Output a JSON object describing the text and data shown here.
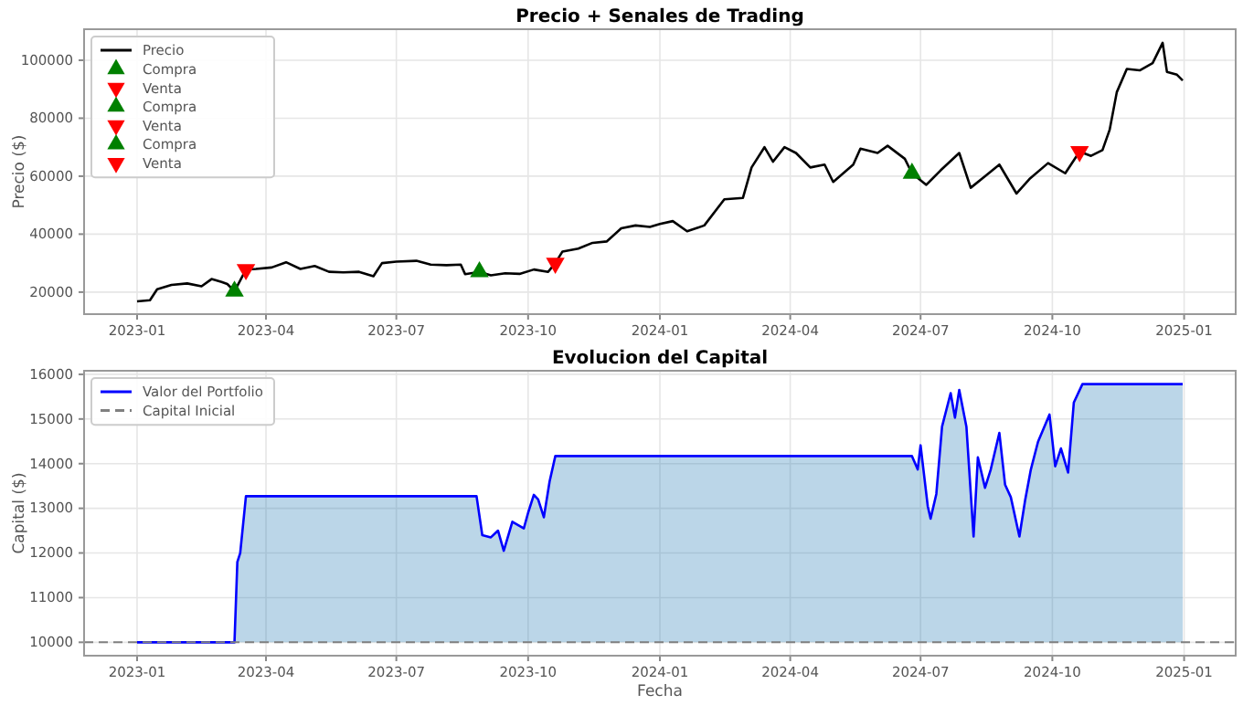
{
  "chart_data": [
    {
      "type": "line",
      "title": "Precio + Senales de Trading",
      "ylabel": "Precio ($)",
      "xlim": [
        "2022-11-25",
        "2025-02-06"
      ],
      "ylim": [
        12400,
        110700
      ],
      "xticks": [
        {
          "value": "2023-01-01",
          "label": "2023-01"
        },
        {
          "value": "2023-04-01",
          "label": "2023-04"
        },
        {
          "value": "2023-07-01",
          "label": "2023-07"
        },
        {
          "value": "2023-10-01",
          "label": "2023-10"
        },
        {
          "value": "2024-01-01",
          "label": "2024-01"
        },
        {
          "value": "2024-04-01",
          "label": "2024-04"
        },
        {
          "value": "2024-07-01",
          "label": "2024-07"
        },
        {
          "value": "2024-10-01",
          "label": "2024-10"
        },
        {
          "value": "2025-01-01",
          "label": "2025-01"
        }
      ],
      "yticks": [
        20000,
        40000,
        60000,
        80000,
        100000
      ],
      "grid": true,
      "legend": "top left",
      "series": [
        {
          "name": "Precio",
          "color": "#000000",
          "x": [
            "2023-01-01",
            "2023-01-10",
            "2023-01-15",
            "2023-01-25",
            "2023-02-05",
            "2023-02-15",
            "2023-02-22",
            "2023-03-01",
            "2023-03-05",
            "2023-03-10",
            "2023-03-14",
            "2023-03-18",
            "2023-03-25",
            "2023-04-05",
            "2023-04-15",
            "2023-04-25",
            "2023-05-05",
            "2023-05-15",
            "2023-05-25",
            "2023-06-05",
            "2023-06-15",
            "2023-06-21",
            "2023-07-01",
            "2023-07-15",
            "2023-07-25",
            "2023-08-05",
            "2023-08-15",
            "2023-08-18",
            "2023-08-28",
            "2023-09-05",
            "2023-09-15",
            "2023-09-25",
            "2023-10-05",
            "2023-10-15",
            "2023-10-20",
            "2023-10-25",
            "2023-11-05",
            "2023-11-15",
            "2023-11-25",
            "2023-12-05",
            "2023-12-15",
            "2023-12-25",
            "2024-01-01",
            "2024-01-10",
            "2024-01-20",
            "2024-02-01",
            "2024-02-15",
            "2024-02-28",
            "2024-03-05",
            "2024-03-14",
            "2024-03-20",
            "2024-03-28",
            "2024-04-05",
            "2024-04-15",
            "2024-04-25",
            "2024-05-01",
            "2024-05-15",
            "2024-05-20",
            "2024-06-01",
            "2024-06-08",
            "2024-06-20",
            "2024-06-25",
            "2024-07-05",
            "2024-07-15",
            "2024-07-28",
            "2024-08-05",
            "2024-08-15",
            "2024-08-25",
            "2024-09-06",
            "2024-09-15",
            "2024-09-28",
            "2024-10-10",
            "2024-10-20",
            "2024-10-28",
            "2024-11-05",
            "2024-11-10",
            "2024-11-15",
            "2024-11-22",
            "2024-12-01",
            "2024-12-10",
            "2024-12-17",
            "2024-12-20",
            "2024-12-27",
            "2024-12-31"
          ],
          "values": [
            16800,
            17200,
            21000,
            22500,
            23000,
            22000,
            24500,
            23500,
            22800,
            20300,
            24000,
            27800,
            28000,
            28500,
            30300,
            28000,
            29000,
            27000,
            26800,
            27000,
            25500,
            30000,
            30500,
            30800,
            29500,
            29300,
            29500,
            26200,
            27000,
            25800,
            26500,
            26300,
            27800,
            27000,
            30000,
            34000,
            35000,
            37000,
            37500,
            42000,
            43000,
            42500,
            43500,
            44500,
            41000,
            43000,
            52000,
            52500,
            63000,
            70000,
            65000,
            70000,
            68000,
            63000,
            64000,
            58000,
            64000,
            69500,
            68000,
            70500,
            66000,
            61000,
            57000,
            62000,
            68000,
            56000,
            60000,
            64000,
            54000,
            59000,
            64500,
            61000,
            68500,
            67000,
            69000,
            76000,
            89000,
            97000,
            96500,
            99000,
            106000,
            96000,
            95000,
            93000
          ]
        },
        {
          "name": "Compra",
          "type": "scatter",
          "color": "#008000",
          "marker": "triangle",
          "x": [
            "2023-03-10"
          ],
          "values": [
            20300
          ]
        },
        {
          "name": "Venta",
          "type": "scatter",
          "color": "#ff0000",
          "marker": "triangle-down",
          "x": [
            "2023-03-18"
          ],
          "values": [
            27800
          ]
        },
        {
          "name": "Compra",
          "type": "scatter",
          "color": "#008000",
          "marker": "triangle",
          "x": [
            "2023-08-28"
          ],
          "values": [
            27000
          ]
        },
        {
          "name": "Venta",
          "type": "scatter",
          "color": "#ff0000",
          "marker": "triangle-down",
          "x": [
            "2023-10-20"
          ],
          "values": [
            30000
          ]
        },
        {
          "name": "Compra",
          "type": "scatter",
          "color": "#008000",
          "marker": "triangle",
          "x": [
            "2024-06-25"
          ],
          "values": [
            61000
          ]
        },
        {
          "name": "Venta",
          "type": "scatter",
          "color": "#ff0000",
          "marker": "triangle-down",
          "x": [
            "2024-10-20"
          ],
          "values": [
            68500
          ]
        }
      ]
    },
    {
      "type": "area",
      "title": "Evolucion del Capital",
      "xlabel": "Fecha",
      "ylabel": "Capital ($)",
      "xlim": [
        "2022-11-25",
        "2025-02-06"
      ],
      "ylim": [
        9700,
        16080
      ],
      "xticks": [
        {
          "value": "2023-01-01",
          "label": "2023-01"
        },
        {
          "value": "2023-04-01",
          "label": "2023-04"
        },
        {
          "value": "2023-07-01",
          "label": "2023-07"
        },
        {
          "value": "2023-10-01",
          "label": "2023-10"
        },
        {
          "value": "2024-01-01",
          "label": "2024-01"
        },
        {
          "value": "2024-04-01",
          "label": "2024-04"
        },
        {
          "value": "2024-07-01",
          "label": "2024-07"
        },
        {
          "value": "2024-10-01",
          "label": "2024-10"
        },
        {
          "value": "2025-01-01",
          "label": "2025-01"
        }
      ],
      "yticks": [
        10000,
        11000,
        12000,
        13000,
        14000,
        15000,
        16000
      ],
      "grid": true,
      "legend": "top left",
      "ref_lines": [
        {
          "axis": "y",
          "value": 10000,
          "label": "Capital Inicial",
          "color": "#808080",
          "line_style": "dashed"
        }
      ],
      "series": [
        {
          "name": "Valor del Portfolio",
          "color": "#0000ff",
          "x": [
            "2023-01-01",
            "2023-03-10",
            "2023-03-12",
            "2023-03-14",
            "2023-03-18",
            "2023-08-26",
            "2023-08-30",
            "2023-09-05",
            "2023-09-10",
            "2023-09-14",
            "2023-09-20",
            "2023-09-28",
            "2023-10-01",
            "2023-10-05",
            "2023-10-08",
            "2023-10-12",
            "2023-10-16",
            "2023-10-20",
            "2024-06-25",
            "2024-06-29",
            "2024-07-01",
            "2024-07-06",
            "2024-07-08",
            "2024-07-12",
            "2024-07-16",
            "2024-07-22",
            "2024-07-25",
            "2024-07-28",
            "2024-08-02",
            "2024-08-07",
            "2024-08-10",
            "2024-08-15",
            "2024-08-19",
            "2024-08-25",
            "2024-08-29",
            "2024-09-02",
            "2024-09-08",
            "2024-09-12",
            "2024-09-16",
            "2024-09-21",
            "2024-09-29",
            "2024-10-03",
            "2024-10-07",
            "2024-10-12",
            "2024-10-16",
            "2024-10-22",
            "2024-12-31"
          ],
          "values": [
            10000,
            10000,
            11800,
            12000,
            13270,
            13270,
            12400,
            12350,
            12500,
            12050,
            12700,
            12550,
            12900,
            13300,
            13200,
            12800,
            13600,
            14170,
            14170,
            13870,
            14410,
            13050,
            12770,
            13320,
            14830,
            15580,
            15030,
            15650,
            14830,
            12370,
            14140,
            13460,
            13870,
            14690,
            13530,
            13250,
            12370,
            13180,
            13870,
            14490,
            15100,
            13940,
            14340,
            13800,
            15370,
            15780,
            15780
          ]
        }
      ]
    }
  ]
}
